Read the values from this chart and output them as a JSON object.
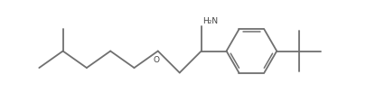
{
  "background_color": "#ffffff",
  "line_color": "#707070",
  "text_color": "#404040",
  "line_width": 1.3,
  "figsize": [
    4.06,
    1.15
  ],
  "dpi": 100,
  "label_nh2": "H₂N",
  "label_o": "O",
  "xlim": [
    0.0,
    10.5
  ],
  "ylim": [
    0.0,
    2.8
  ]
}
